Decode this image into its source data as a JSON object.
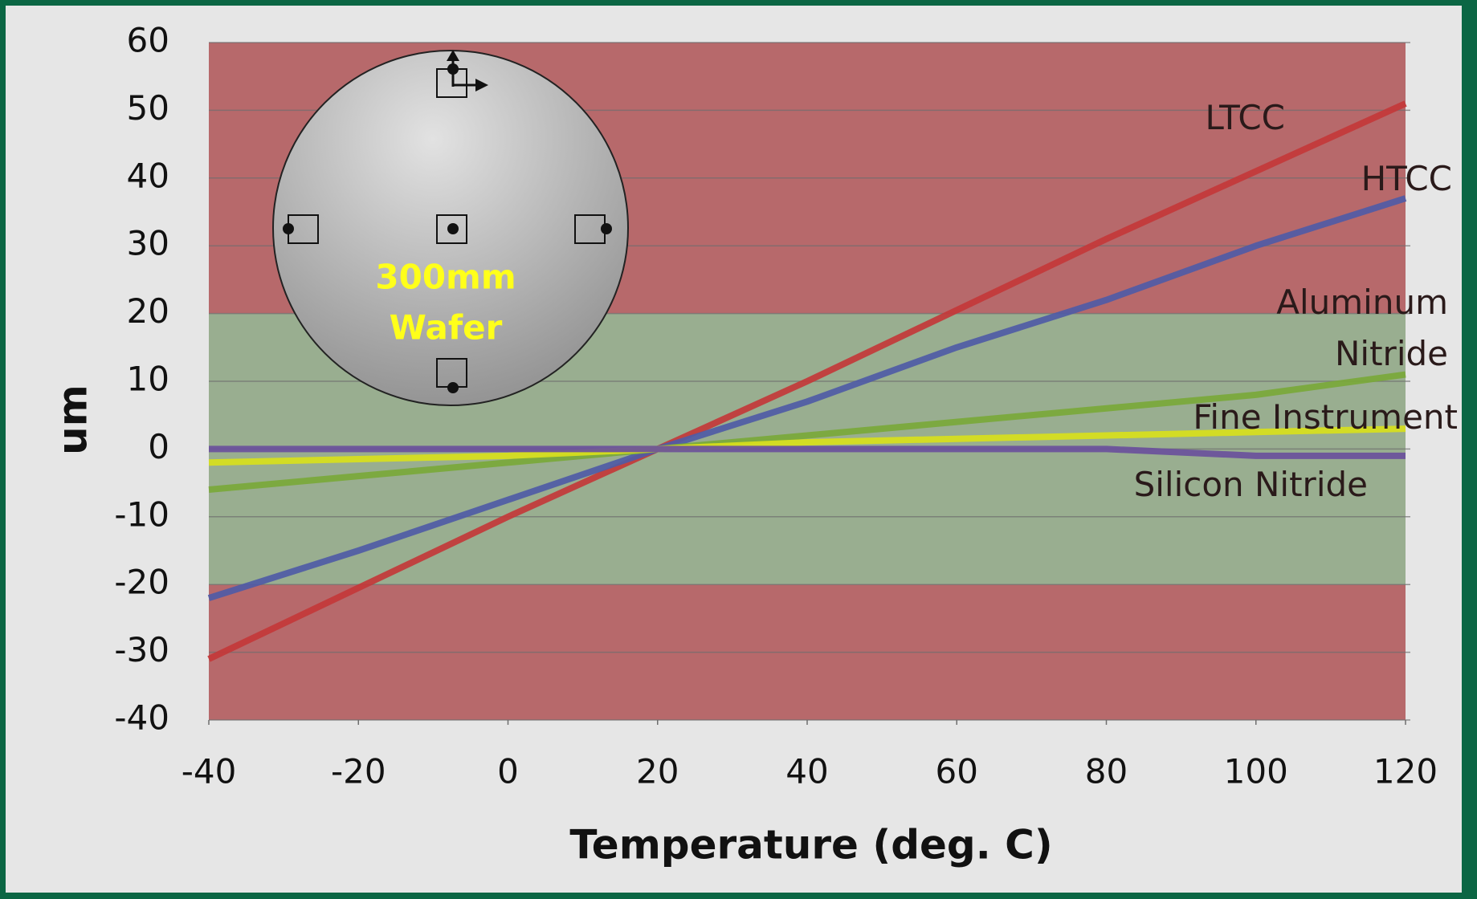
{
  "chart_data": {
    "type": "line",
    "x_label": "Temperature (deg. C)",
    "y_label": "um",
    "x": [
      -40,
      -20,
      0,
      20,
      40,
      60,
      80,
      100,
      120
    ],
    "series": [
      {
        "name": "LTCC",
        "color": "#c3383a",
        "values": [
          -31,
          -20.5,
          -10,
          0,
          10,
          20.5,
          31,
          41,
          51
        ]
      },
      {
        "name": "HTCC",
        "color": "#4f5ba6",
        "values": [
          -22,
          -15,
          -7.5,
          0,
          7,
          15,
          22,
          30,
          37
        ]
      },
      {
        "name": "Aluminum Nitride",
        "color": "#7aa83a",
        "values": [
          -6,
          -4,
          -2,
          0,
          2,
          4,
          6,
          8,
          11
        ]
      },
      {
        "name": "Fine Instrument",
        "color": "#d8e01c",
        "values": [
          -2,
          -1.5,
          -1,
          0,
          1,
          1.5,
          2,
          2.5,
          3
        ]
      },
      {
        "name": "Silicon Nitride",
        "color": "#6a509c",
        "values": [
          0,
          0,
          0,
          0,
          0,
          0,
          0,
          -1,
          -1
        ]
      }
    ],
    "bands": [
      {
        "from": 20,
        "to": 60,
        "color": "#b7696b"
      },
      {
        "from": -20,
        "to": 20,
        "color": "#99ae90"
      },
      {
        "from": -40,
        "to": -20,
        "color": "#b7696b"
      }
    ],
    "xlim": [
      -40,
      120
    ],
    "xticks": [
      -40,
      -20,
      0,
      20,
      40,
      60,
      80,
      100,
      120
    ],
    "ylim": [
      -40,
      60
    ],
    "yticks": [
      -40,
      -30,
      -20,
      -10,
      0,
      10,
      20,
      30,
      40,
      50,
      60
    ],
    "grid": true,
    "inset": {
      "lines": [
        "300mm",
        "Wafer"
      ],
      "color": "#ffff1a"
    }
  }
}
